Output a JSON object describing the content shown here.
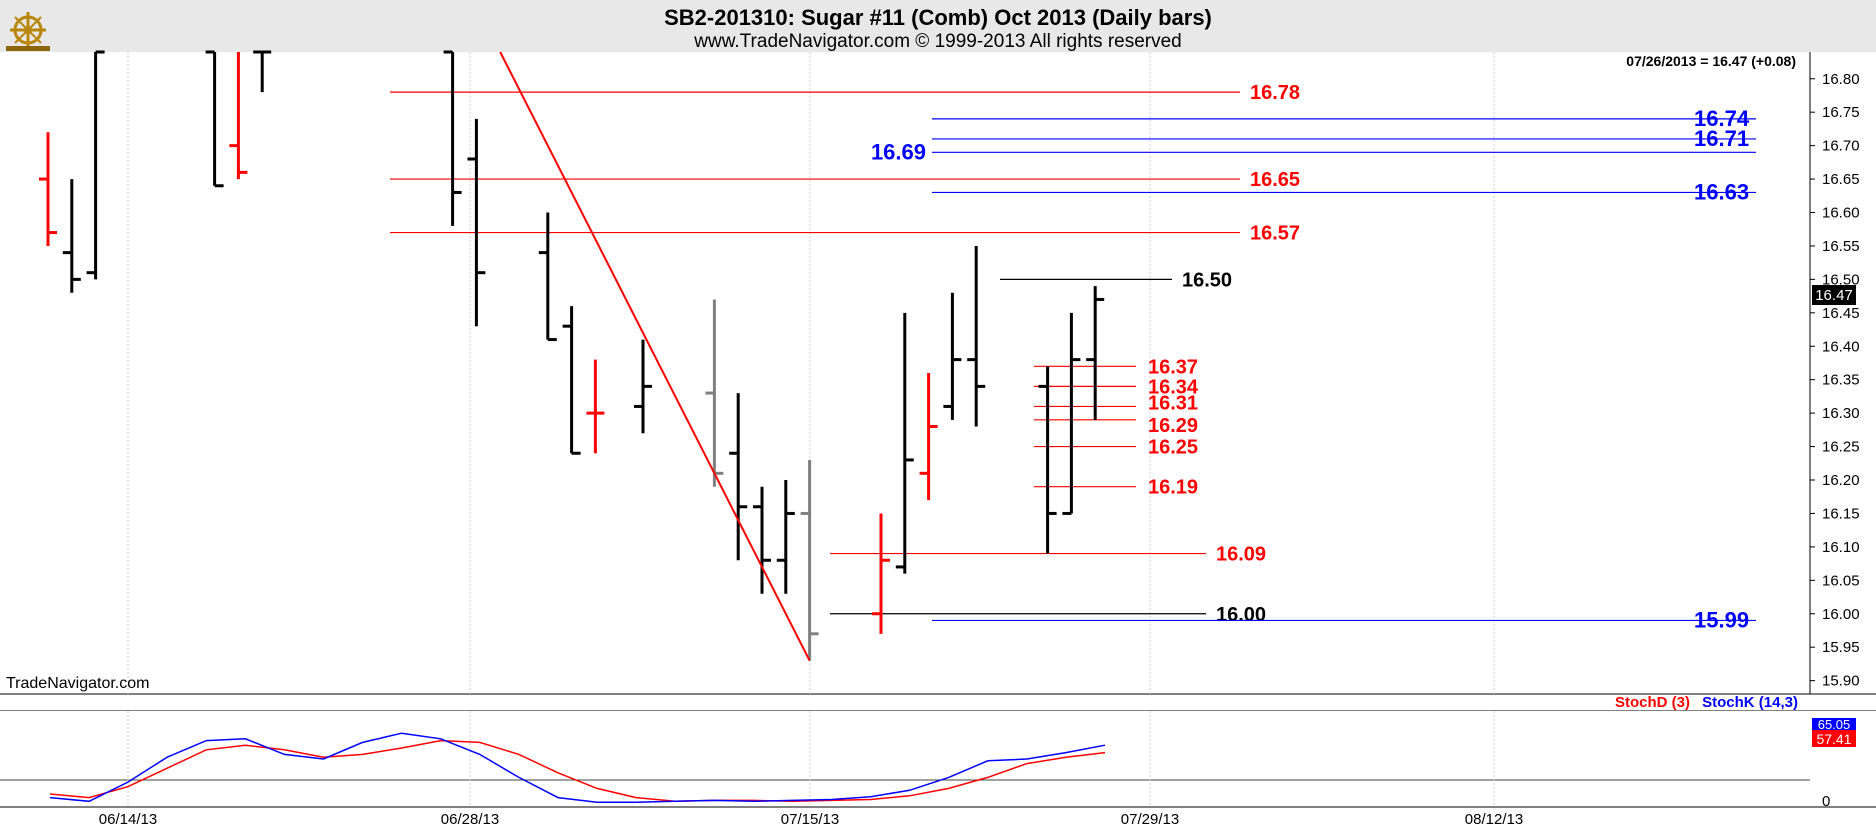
{
  "title": "SB2-201310:  Sugar #11 (Comb) Oct 2013  (Daily bars)",
  "subtitle": "www.TradeNavigator.com © 1999-2013 All rights reserved",
  "watermark": "TradeNavigator.com",
  "last_quote": "07/26/2013 = 16.47 (+0.08)",
  "last_price_tag": "16.47",
  "logo_icon": "ship-wheel-logo-icon",
  "colors": {
    "up": "#000000",
    "down": "#ff0000",
    "neutral": "#808080",
    "stochD": "#ff0000",
    "stochK": "#0000ff",
    "level_red": "#ff0000",
    "level_blue": "#0000ff",
    "level_black": "#000000"
  },
  "chart_data": [
    {
      "type": "ohlc",
      "ylim": [
        15.88,
        16.84
      ],
      "y_ticks": [
        "16.80",
        "16.75",
        "16.70",
        "16.65",
        "16.60",
        "16.55",
        "16.50",
        "16.45",
        "16.40",
        "16.35",
        "16.30",
        "16.25",
        "16.20",
        "16.15",
        "16.10",
        "16.05",
        "16.00",
        "15.95",
        "15.90"
      ],
      "x_tick_labels": [
        "06/14/13",
        "06/28/13",
        "07/15/13",
        "07/29/13",
        "08/12/13"
      ],
      "bars": [
        {
          "date": "06/10",
          "o": 16.65,
          "h": 16.72,
          "l": 16.55,
          "c": 16.57,
          "color": "red"
        },
        {
          "date": "06/11",
          "o": 16.54,
          "h": 16.65,
          "l": 16.48,
          "c": 16.5,
          "color": "black"
        },
        {
          "date": "06/12",
          "o": 16.51,
          "h": 16.84,
          "l": 16.5,
          "c": 16.84,
          "color": "black"
        },
        {
          "date": "06/17",
          "o": 16.84,
          "h": 16.84,
          "l": 16.64,
          "c": 16.64,
          "color": "black"
        },
        {
          "date": "06/18",
          "o": 16.7,
          "h": 16.84,
          "l": 16.65,
          "c": 16.66,
          "color": "red"
        },
        {
          "date": "06/19",
          "o": 16.84,
          "h": 16.84,
          "l": 16.78,
          "c": 16.84,
          "color": "black"
        },
        {
          "date": "06/27",
          "o": 16.84,
          "h": 16.84,
          "l": 16.58,
          "c": 16.63,
          "color": "black"
        },
        {
          "date": "06/28",
          "o": 16.68,
          "h": 16.74,
          "l": 16.43,
          "c": 16.51,
          "color": "black"
        },
        {
          "date": "07/01",
          "o": 16.54,
          "h": 16.6,
          "l": 16.41,
          "c": 16.41,
          "color": "black"
        },
        {
          "date": "07/02",
          "o": 16.43,
          "h": 16.46,
          "l": 16.24,
          "c": 16.24,
          "color": "black"
        },
        {
          "date": "07/03",
          "o": 16.3,
          "h": 16.38,
          "l": 16.24,
          "c": 16.3,
          "color": "red"
        },
        {
          "date": "07/05",
          "o": 16.31,
          "h": 16.41,
          "l": 16.27,
          "c": 16.34,
          "color": "black"
        },
        {
          "date": "07/08",
          "o": 16.33,
          "h": 16.47,
          "l": 16.19,
          "c": 16.21,
          "color": "gray"
        },
        {
          "date": "07/09",
          "o": 16.24,
          "h": 16.33,
          "l": 16.08,
          "c": 16.16,
          "color": "black"
        },
        {
          "date": "07/10",
          "o": 16.16,
          "h": 16.19,
          "l": 16.03,
          "c": 16.08,
          "color": "black"
        },
        {
          "date": "07/11",
          "o": 16.08,
          "h": 16.2,
          "l": 16.03,
          "c": 16.15,
          "color": "black"
        },
        {
          "date": "07/12",
          "o": 16.15,
          "h": 16.23,
          "l": 15.93,
          "c": 15.97,
          "color": "gray"
        },
        {
          "date": "07/15",
          "o": 16.0,
          "h": 16.15,
          "l": 15.97,
          "c": 16.08,
          "color": "red"
        },
        {
          "date": "07/16",
          "o": 16.07,
          "h": 16.45,
          "l": 16.06,
          "c": 16.23,
          "color": "black"
        },
        {
          "date": "07/17",
          "o": 16.21,
          "h": 16.36,
          "l": 16.17,
          "c": 16.28,
          "color": "red"
        },
        {
          "date": "07/18",
          "o": 16.31,
          "h": 16.48,
          "l": 16.29,
          "c": 16.38,
          "color": "black"
        },
        {
          "date": "07/19",
          "o": 16.38,
          "h": 16.55,
          "l": 16.28,
          "c": 16.34,
          "color": "black"
        },
        {
          "date": "07/22",
          "o": 16.34,
          "h": 16.37,
          "l": 16.09,
          "c": 16.15,
          "color": "black"
        },
        {
          "date": "07/23",
          "o": 16.15,
          "h": 16.45,
          "l": 16.15,
          "c": 16.38,
          "color": "black"
        },
        {
          "date": "07/24",
          "o": 16.38,
          "h": 16.49,
          "l": 16.29,
          "c": 16.47,
          "color": "black"
        }
      ],
      "levels": [
        {
          "value": "16.78",
          "color": "red"
        },
        {
          "value": "16.74",
          "color": "blue"
        },
        {
          "value": "16.71",
          "color": "blue"
        },
        {
          "value": "16.69",
          "color": "blue"
        },
        {
          "value": "16.65",
          "color": "red"
        },
        {
          "value": "16.63",
          "color": "blue"
        },
        {
          "value": "16.57",
          "color": "red"
        },
        {
          "value": "16.50",
          "color": "black"
        },
        {
          "value": "16.37",
          "color": "red"
        },
        {
          "value": "16.34",
          "color": "red"
        },
        {
          "value": "16.31",
          "color": "red"
        },
        {
          "value": "16.29",
          "color": "red"
        },
        {
          "value": "16.25",
          "color": "red"
        },
        {
          "value": "16.19",
          "color": "red"
        },
        {
          "value": "16.09",
          "color": "red"
        },
        {
          "value": "16.00",
          "color": "black"
        },
        {
          "value": "15.99",
          "color": "blue"
        }
      ],
      "trendline": {
        "from": {
          "date": "06/29",
          "price": 16.84
        },
        "to": {
          "date": "07/12",
          "price": 15.93
        },
        "color": "red"
      }
    },
    {
      "type": "line",
      "title": "Stochastics",
      "ylim": [
        0,
        100
      ],
      "y_ticks": [
        "0"
      ],
      "last_values": [
        "65.05",
        "57.41"
      ],
      "series": [
        {
          "name": "StochD (3)",
          "color": "red",
          "values": [
            12,
            8,
            20,
            40,
            60,
            65,
            60,
            52,
            55,
            62,
            70,
            68,
            55,
            35,
            18,
            8,
            4,
            5,
            5,
            4,
            5,
            6,
            10,
            18,
            30,
            45,
            52,
            57
          ]
        },
        {
          "name": "StochK (14,3)",
          "color": "blue",
          "values": [
            8,
            4,
            25,
            52,
            70,
            72,
            55,
            50,
            68,
            78,
            72,
            55,
            30,
            8,
            3,
            3,
            4,
            5,
            4,
            5,
            6,
            9,
            16,
            30,
            48,
            50,
            57,
            65
          ]
        }
      ]
    }
  ]
}
